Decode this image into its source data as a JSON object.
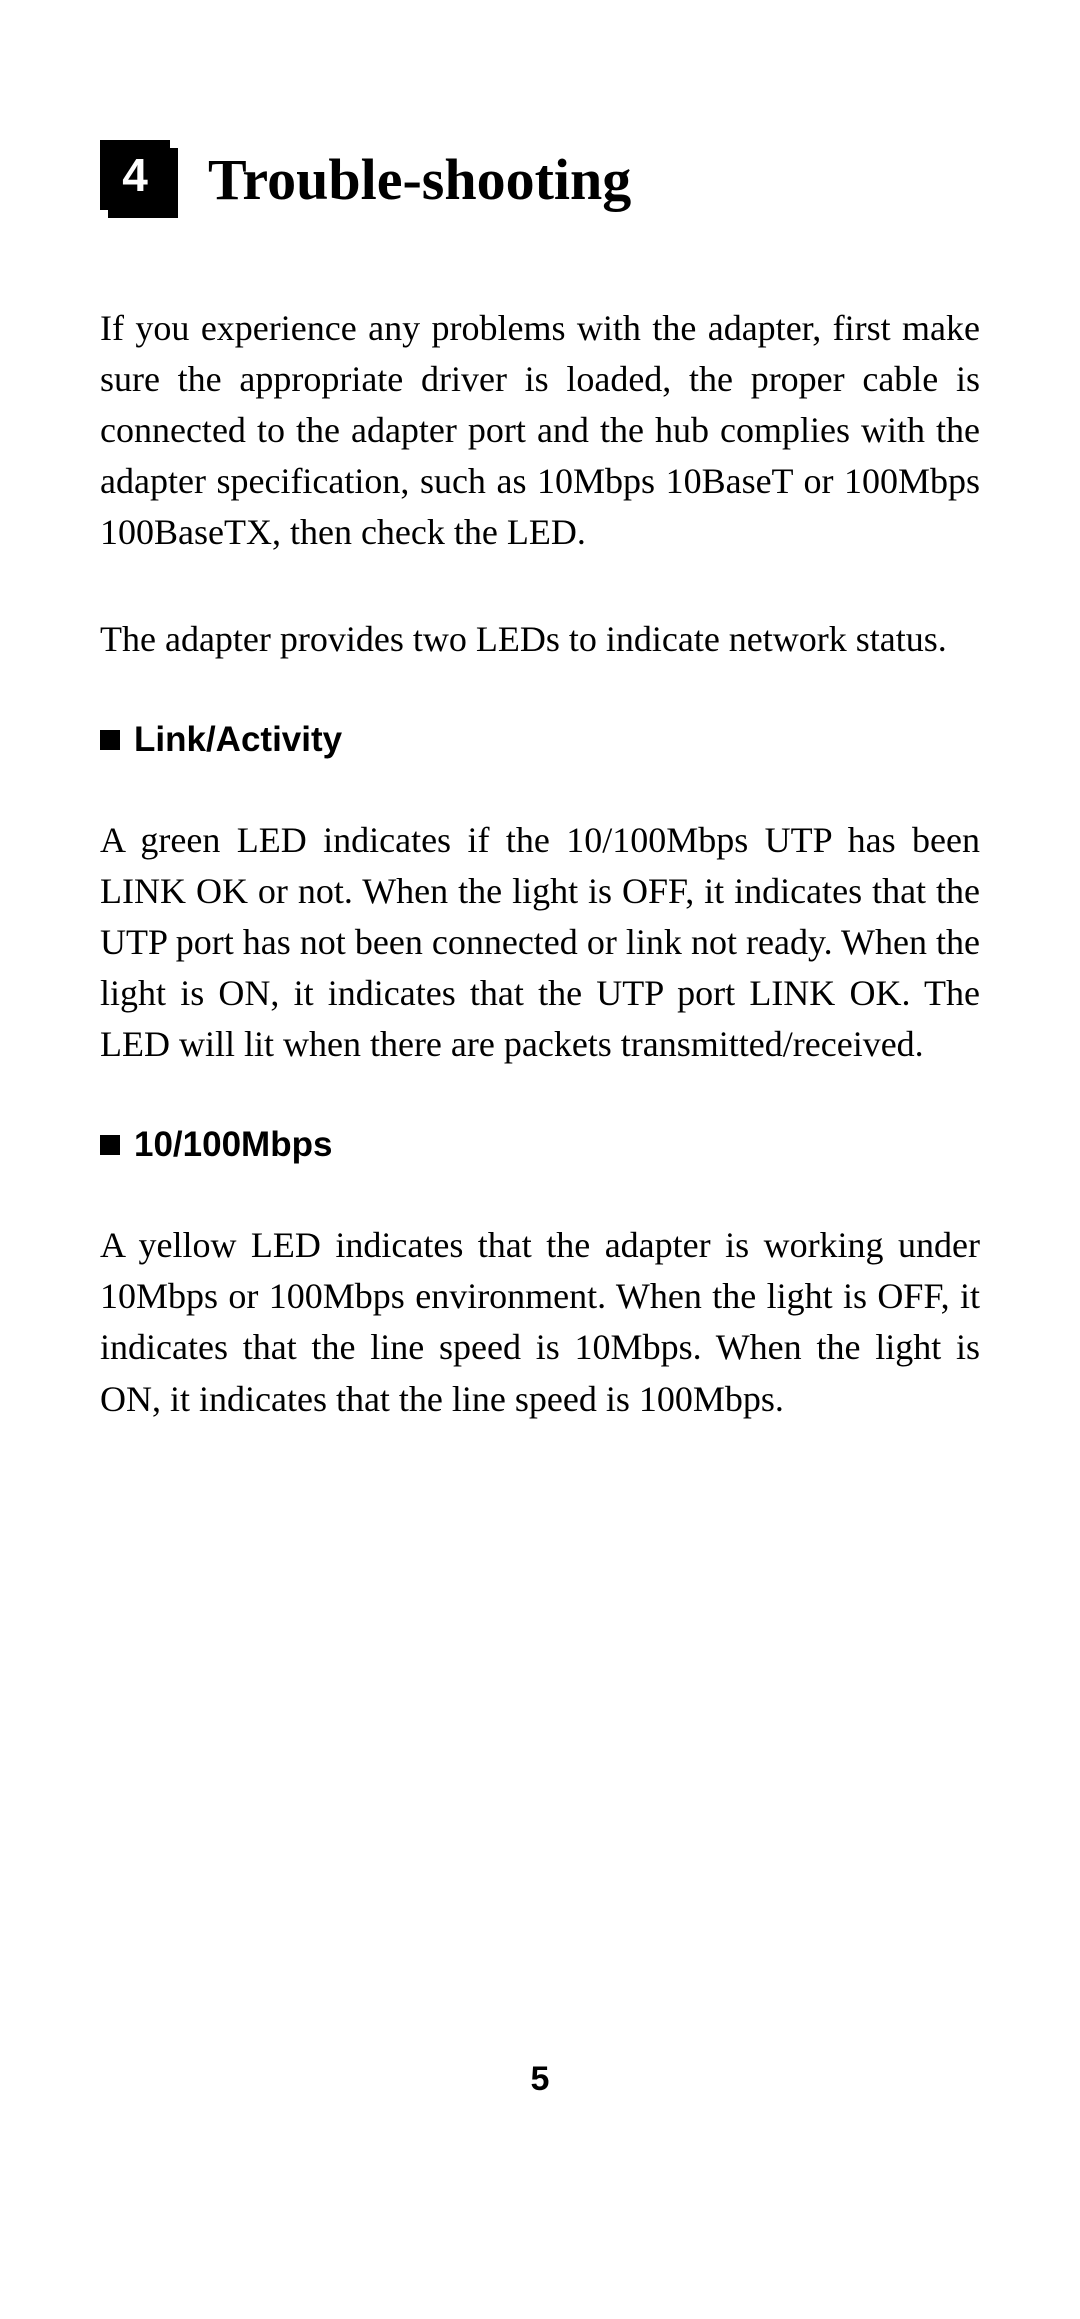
{
  "chapter": {
    "number": "4",
    "title": "Trouble-shooting"
  },
  "paragraphs": {
    "intro": "If you experience any problems with the adapter, first make sure the appropriate driver is loaded, the proper cable is connected to the adapter port and the hub complies with the adapter specification, such as 10Mbps 10BaseT or 100Mbps 100BaseTX, then check the LED.",
    "leds": "The adapter provides two LEDs to indicate network status."
  },
  "sections": [
    {
      "heading": "Link/Activity",
      "body": "A green LED indicates if the 10/100Mbps UTP has been LINK OK or not.  When the light is OFF, it indicates that the UTP port has not been connected or link not ready.  When the light is ON, it indicates that the UTP port LINK OK.  The LED will lit when there are packets transmitted/received."
    },
    {
      "heading": "10/100Mbps",
      "body": "A yellow LED indicates that the adapter is working under 10Mbps or 100Mbps environment.  When the light is OFF, it indicates that the line speed is 10Mbps.  When the light is ON, it indicates that the line speed is 100Mbps."
    }
  ],
  "page_number": "5",
  "colors": {
    "text": "#000000",
    "background": "#ffffff",
    "box": "#000000"
  }
}
